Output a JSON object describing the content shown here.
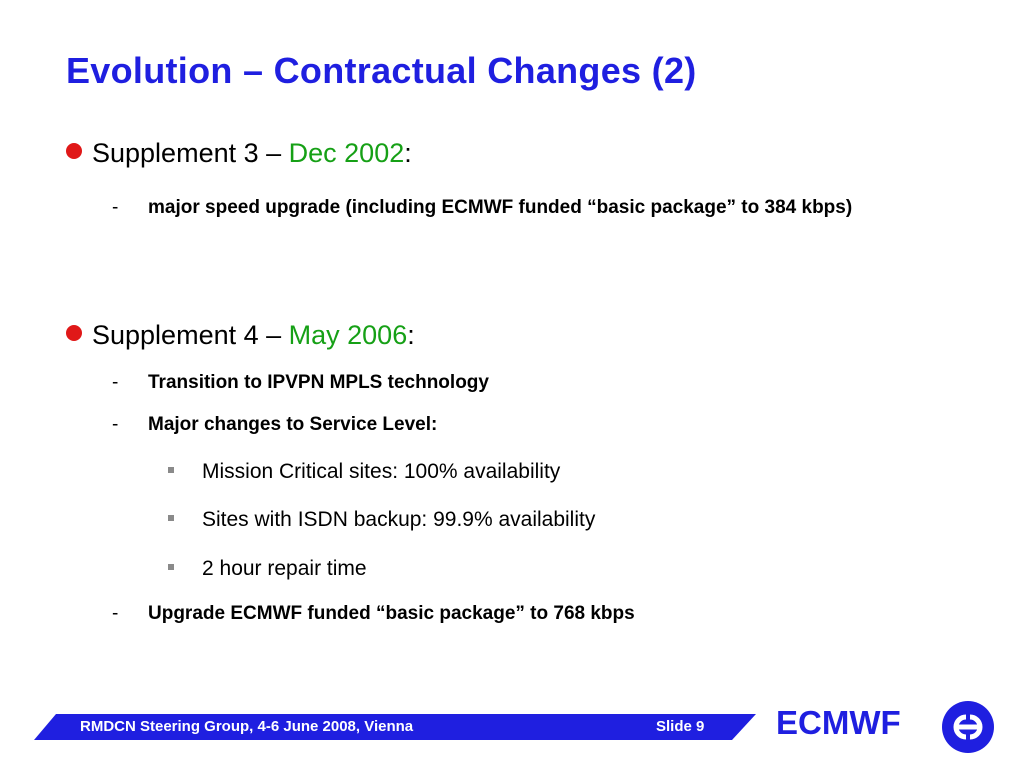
{
  "slide": {
    "title": "Evolution – Contractual Changes (2)",
    "supplement3": {
      "label": "Supplement 3 – ",
      "date": "Dec 2002",
      "colon": ":",
      "items": [
        "major speed upgrade (including ECMWF funded “basic package” to 384 kbps)"
      ]
    },
    "supplement4": {
      "label": "Supplement 4 – ",
      "date": "May 2006",
      "colon": ":",
      "items": [
        "Transition to IPVPN MPLS technology",
        "Major changes to Service Level:"
      ],
      "service_level": [
        "Mission Critical sites: 100% availability",
        "Sites with ISDN backup: 99.9% availability",
        "2 hour repair time"
      ],
      "last_item": "Upgrade ECMWF funded “basic package” to 768 kbps"
    },
    "dash": "-"
  },
  "footer": {
    "left": "RMDCN Steering Group, 4-6 June 2008, Vienna",
    "right": "Slide 9",
    "brand": "ECMWF",
    "logo_icon": "ecmwf-logo-icon"
  },
  "colors": {
    "title": "#1f1fe0",
    "bullet": "#e01818",
    "date": "#16a016",
    "footer_bar": "#1f1fe0"
  }
}
